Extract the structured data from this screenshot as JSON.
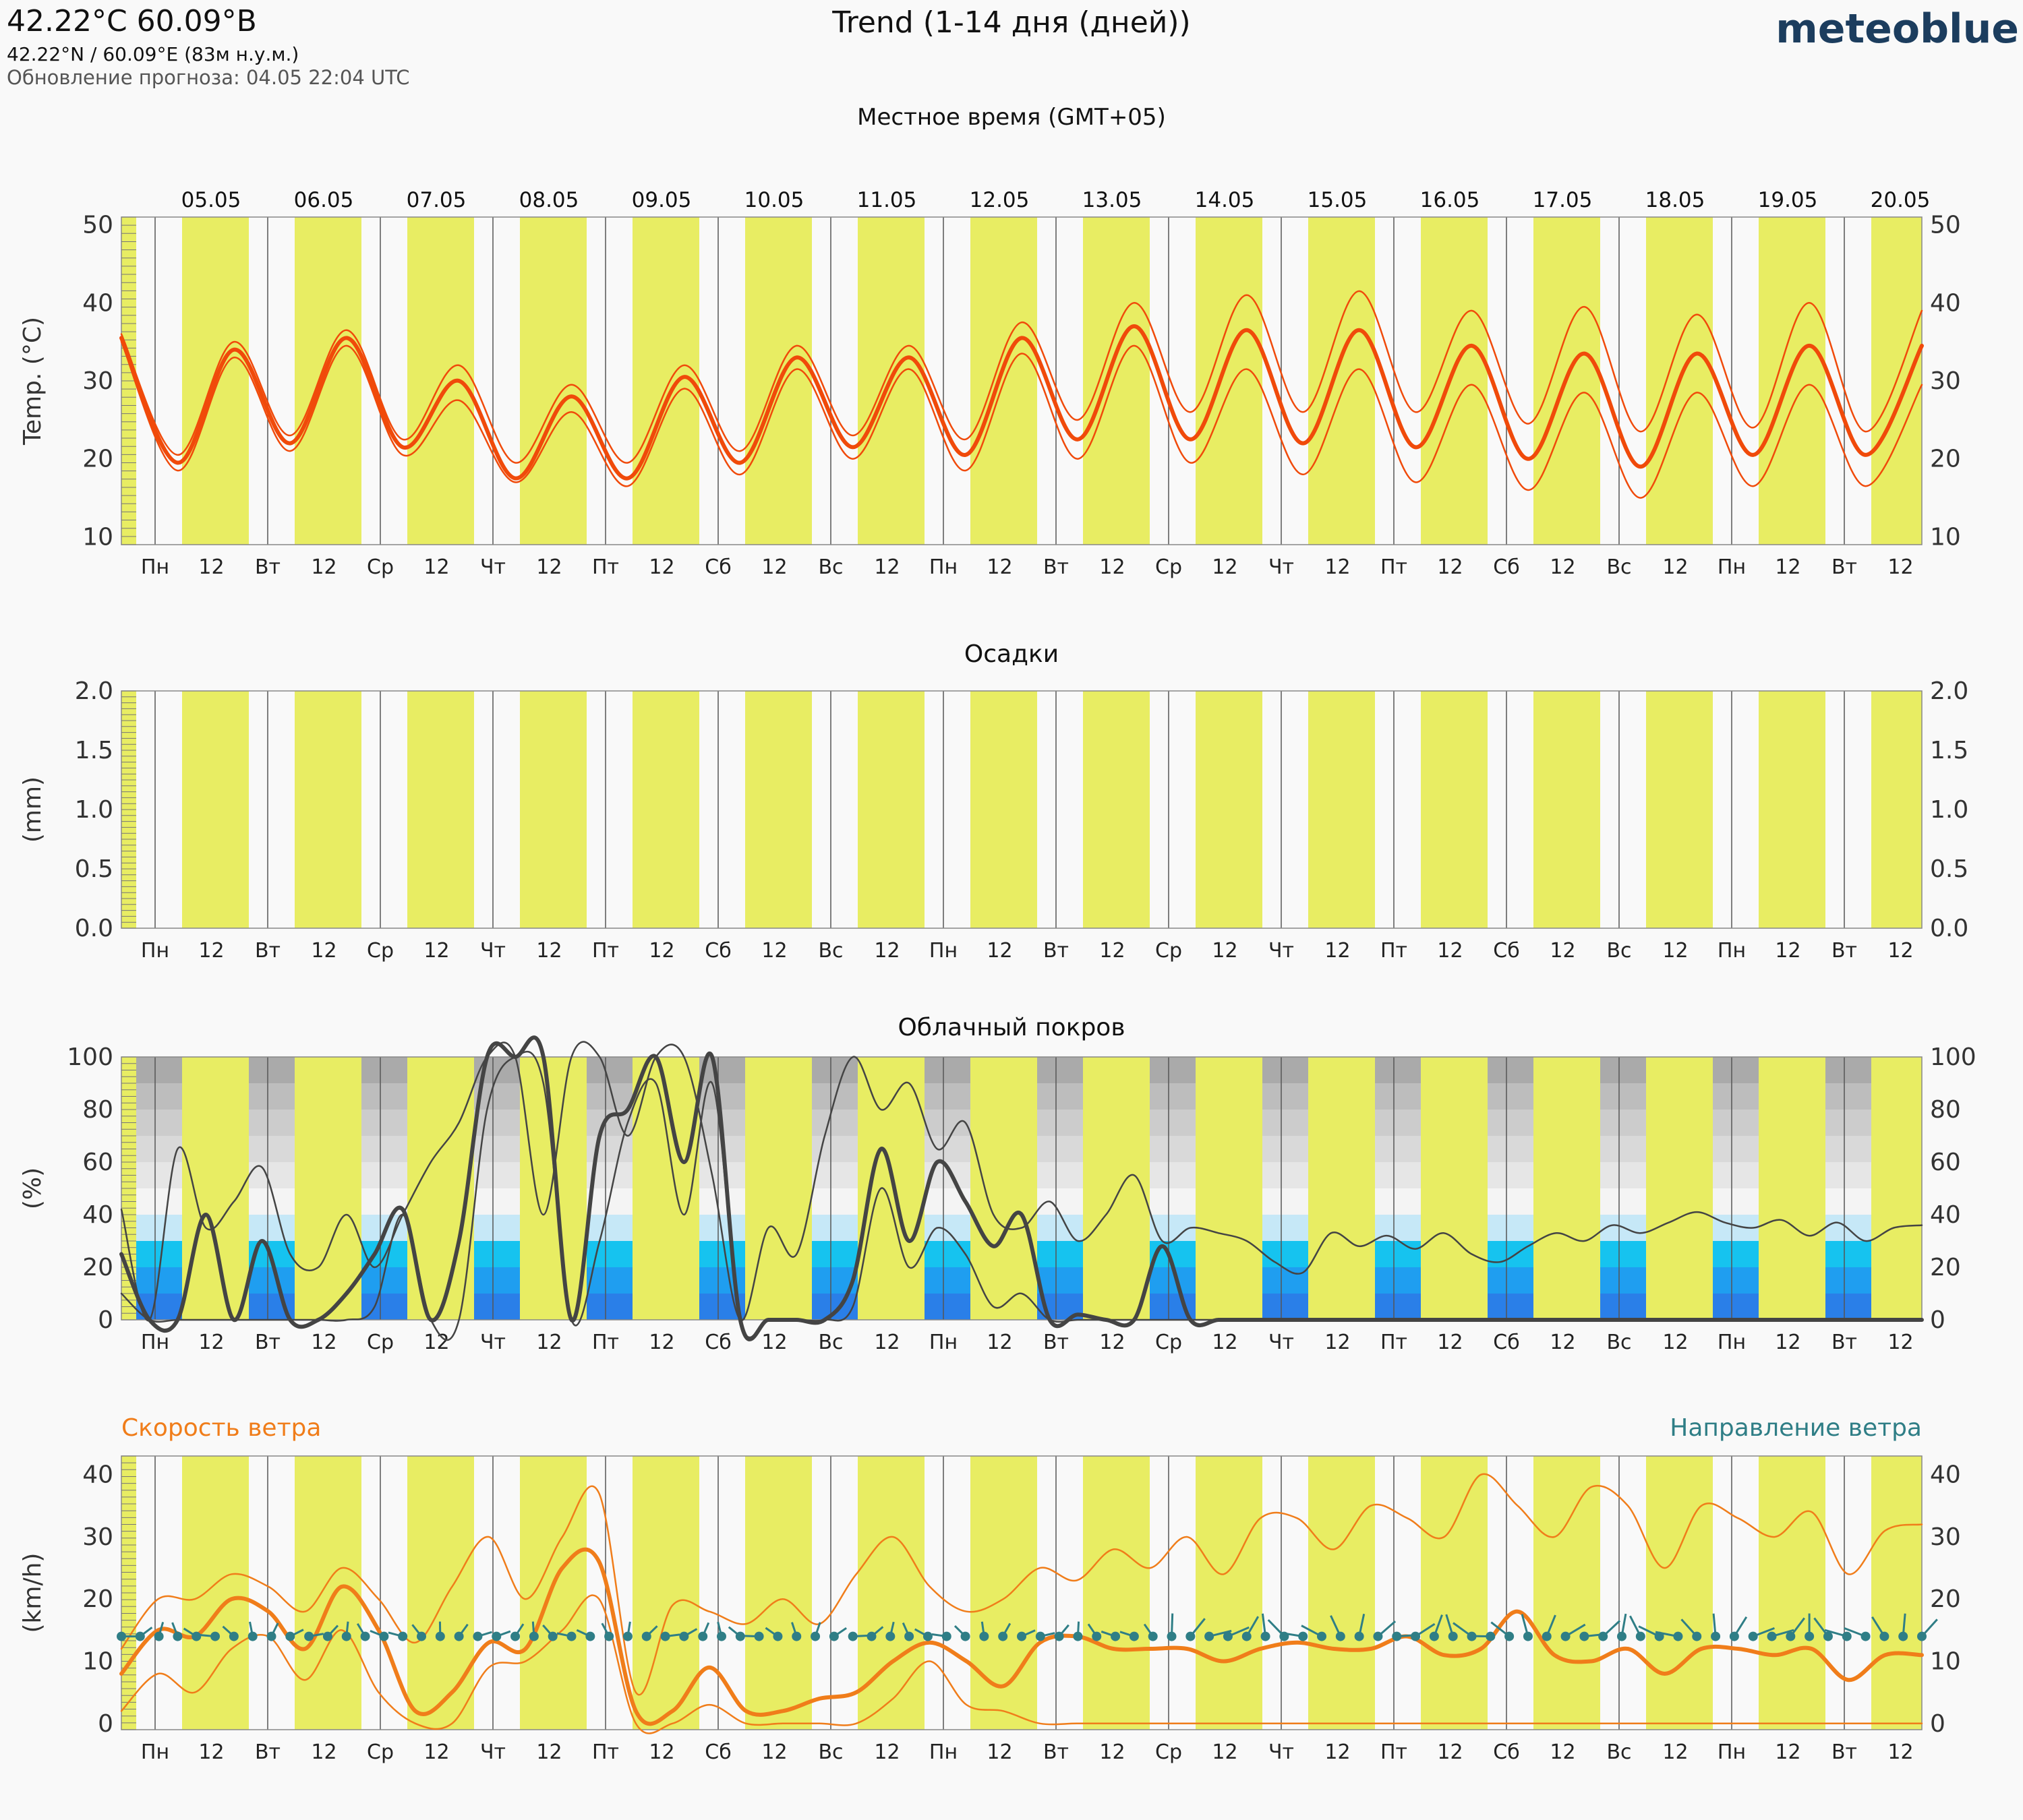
{
  "header": {
    "coord_title": "42.22°C 60.09°B",
    "coord_sub": "42.22°N / 60.09°E (83м н.у.м.)",
    "update_line": "Обновление прогноза: 04.05 22:04 UTC",
    "main_title": "Trend (1-14 дня (дней))",
    "brand": "meteoblue",
    "timezone_label": "Местное время (GMT+05)"
  },
  "colors": {
    "day_band": "#e8ed63",
    "temperature": "#f04a0a",
    "cloud_line": "#444444",
    "wind_speed": "#f07d1a",
    "wind_dir": "#2f7e86"
  },
  "chart_data": [
    {
      "type": "line",
      "title": "",
      "ylabel": "Temp. (°C)",
      "ylim": [
        9,
        51
      ],
      "yticks": [
        10,
        20,
        30,
        40,
        50
      ],
      "date_labels": [
        "05.05",
        "06.05",
        "07.05",
        "08.05",
        "09.05",
        "10.05",
        "11.05",
        "12.05",
        "13.05",
        "14.05",
        "15.05",
        "16.05",
        "17.05",
        "18.05",
        "19.05",
        "20.05"
      ],
      "x_tick_labels": [
        "Пн",
        "12",
        "Вт",
        "12",
        "Ср",
        "12",
        "Чт",
        "12",
        "Пт",
        "12",
        "Сб",
        "12",
        "Вс",
        "12",
        "Пн",
        "12",
        "Вт",
        "12",
        "Ср",
        "12",
        "Чт",
        "12",
        "Пт",
        "12",
        "Сб",
        "12",
        "Вс",
        "12",
        "Пн",
        "12",
        "Вт",
        "12"
      ],
      "daily_min": [
        19.5,
        22.0,
        21.5,
        17.5,
        17.5,
        19.5,
        21.5,
        20.5,
        22.5,
        22.5,
        22.0,
        21.5,
        20.0,
        19.0,
        20.5,
        20.5
      ],
      "daily_max": [
        34.0,
        35.5,
        30.0,
        28.0,
        30.5,
        33.0,
        33.0,
        35.5,
        37.0,
        36.5,
        36.5,
        34.5,
        33.5,
        33.5,
        34.5,
        34.5
      ],
      "series": [
        {
          "name": "",
          "role": "median",
          "values": [
            35.5,
            19.5,
            34.0,
            22.0,
            35.5,
            21.5,
            30.0,
            17.5,
            28.0,
            17.5,
            30.5,
            19.5,
            33.0,
            21.5,
            33.0,
            20.5,
            35.5,
            22.5,
            37.0,
            22.5,
            36.5,
            22.0,
            36.5,
            21.5,
            34.5,
            20.0,
            33.5,
            19.0,
            33.5,
            20.5,
            34.5,
            20.5,
            34.5
          ]
        },
        {
          "name": "",
          "role": "upper",
          "values": [
            36.0,
            20.5,
            35.0,
            23.0,
            36.5,
            22.5,
            32.0,
            19.5,
            29.5,
            19.5,
            32.0,
            21.0,
            34.5,
            23.0,
            34.5,
            22.5,
            37.5,
            25.0,
            40.0,
            26.0,
            41.0,
            26.0,
            41.5,
            26.0,
            39.0,
            24.5,
            39.5,
            23.5,
            38.5,
            24.0,
            40.0,
            23.5,
            39.0
          ]
        },
        {
          "name": "",
          "role": "lower",
          "values": [
            35.0,
            18.5,
            33.0,
            21.0,
            34.5,
            20.5,
            27.5,
            17.0,
            26.0,
            16.5,
            29.0,
            18.0,
            31.5,
            20.0,
            31.5,
            18.5,
            33.5,
            20.0,
            34.5,
            19.5,
            31.5,
            18.0,
            31.5,
            17.0,
            29.5,
            16.0,
            28.5,
            15.0,
            28.5,
            16.5,
            29.5,
            16.5,
            29.5
          ]
        }
      ]
    },
    {
      "type": "bar",
      "title": "Осадки",
      "ylabel": "(mm)",
      "ylim": [
        0,
        2.0
      ],
      "yticks": [
        "0.0",
        "0.5",
        "1.0",
        "1.5",
        "2.0"
      ],
      "values": []
    },
    {
      "type": "line",
      "title": "Облачный покров",
      "ylabel": "(%)",
      "ylim": [
        0,
        100
      ],
      "yticks": [
        0,
        20,
        40,
        60,
        80,
        100
      ],
      "series": [
        {
          "name": "",
          "role": "median",
          "values": [
            25,
            0,
            0,
            40,
            0,
            30,
            0,
            0,
            10,
            25,
            42,
            0,
            30,
            100,
            100,
            100,
            0,
            70,
            80,
            100,
            60,
            100,
            0,
            0,
            0,
            0,
            15,
            65,
            30,
            60,
            45,
            28,
            40,
            0,
            2,
            0,
            0,
            28,
            0,
            0,
            0,
            0,
            0,
            0,
            0,
            0,
            0,
            0,
            0,
            0,
            0,
            0,
            0,
            0,
            0,
            0,
            0,
            0,
            0,
            0,
            0,
            0,
            0,
            0,
            0
          ]
        },
        {
          "name": "",
          "role": "upper",
          "values": [
            42,
            0,
            65,
            35,
            45,
            58,
            25,
            20,
            40,
            20,
            40,
            60,
            75,
            100,
            100,
            40,
            100,
            100,
            70,
            100,
            100,
            55,
            0,
            35,
            25,
            70,
            100,
            80,
            90,
            65,
            75,
            40,
            35,
            45,
            30,
            40,
            55,
            30,
            35,
            33,
            30,
            22,
            18,
            33,
            28,
            32,
            27,
            33,
            25,
            22,
            28,
            33,
            30,
            36,
            33,
            37,
            41,
            37,
            35,
            38,
            32,
            37,
            30,
            35,
            36
          ]
        },
        {
          "name": "",
          "role": "lower",
          "values": [
            10,
            0,
            0,
            0,
            0,
            0,
            0,
            0,
            0,
            5,
            40,
            0,
            0,
            80,
            100,
            90,
            0,
            30,
            75,
            90,
            40,
            90,
            0,
            0,
            0,
            0,
            5,
            50,
            20,
            35,
            25,
            5,
            10,
            0,
            0,
            0,
            0,
            0,
            0,
            0,
            0,
            0,
            0,
            0,
            0,
            0,
            0,
            0,
            0,
            0,
            0,
            0,
            0,
            0,
            0,
            0,
            0,
            0,
            0,
            0,
            0,
            0,
            0,
            0,
            0
          ]
        }
      ]
    },
    {
      "type": "line",
      "title": "",
      "ylabel": "(km/h)",
      "legend": [
        "Скорость ветра",
        "Направление ветра"
      ],
      "ylim": [
        -1,
        43
      ],
      "yticks": [
        0,
        10,
        20,
        30,
        40
      ],
      "series": [
        {
          "name": "Скорость ветра",
          "role": "median",
          "values": [
            8,
            15,
            14,
            20,
            18,
            12,
            22,
            15,
            2,
            5,
            13,
            12,
            25,
            26,
            2,
            2,
            9,
            2,
            2,
            4,
            5,
            10,
            13,
            10,
            6,
            13,
            14,
            12,
            12,
            12,
            10,
            12,
            13,
            12,
            12,
            14,
            11,
            12,
            18,
            11,
            10,
            12,
            8,
            12,
            12,
            11,
            12,
            7,
            11,
            11
          ]
        },
        {
          "name": "Скорость ветра",
          "role": "upper",
          "values": [
            12,
            20,
            20,
            24,
            22,
            18,
            25,
            20,
            13,
            22,
            30,
            20,
            30,
            37,
            5,
            19,
            18,
            16,
            20,
            16,
            24,
            30,
            22,
            18,
            20,
            25,
            23,
            28,
            25,
            30,
            24,
            33,
            33,
            28,
            35,
            33,
            30,
            40,
            35,
            30,
            38,
            35,
            25,
            35,
            33,
            30,
            34,
            24,
            31,
            32
          ]
        },
        {
          "name": "Скорость ветра",
          "role": "lower",
          "values": [
            2,
            8,
            5,
            12,
            14,
            7,
            15,
            5,
            0,
            0,
            9,
            10,
            15,
            20,
            0,
            0,
            3,
            0,
            0,
            0,
            0,
            4,
            10,
            3,
            2,
            0,
            0,
            0,
            0,
            0,
            0,
            0,
            0,
            0,
            0,
            0,
            0,
            0,
            0,
            0,
            0,
            0,
            0,
            0,
            0,
            0,
            0,
            0,
            0,
            0
          ]
        }
      ]
    }
  ]
}
